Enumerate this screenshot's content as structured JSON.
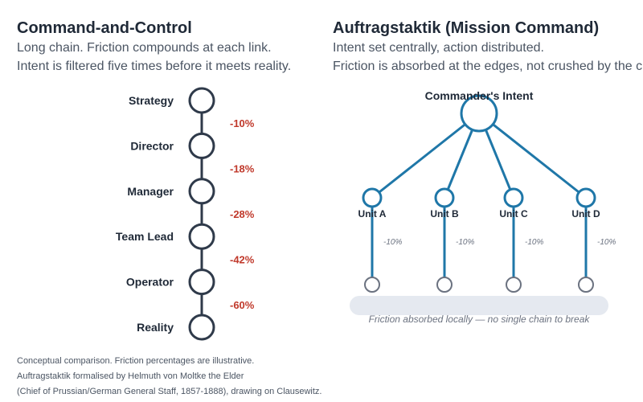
{
  "left": {
    "title": "Command-and-Control",
    "subtitle_1": "Long chain. Friction compounds at each link.",
    "subtitle_2": "Intent is filtered five times before it meets reality.",
    "chain": [
      "Strategy",
      "Director",
      "Manager",
      "Team Lead",
      "Operator",
      "Reality"
    ],
    "losses": [
      "-10%",
      "-18%",
      "-28%",
      "-42%",
      "-60%"
    ]
  },
  "right": {
    "title": "Auftragstaktik (Mission Command)",
    "subtitle_1": "Intent set centrally, action distributed.",
    "subtitle_2": "Friction is absorbed at the edges, not crushed by the chain.",
    "root_label": "Commander's Intent",
    "units": [
      "Unit A",
      "Unit B",
      "Unit C",
      "Unit D"
    ],
    "unit_losses": [
      "-10%",
      "-10%",
      "-10%",
      "-10%"
    ],
    "band_label": "Friction absorbed locally — no single chain to break"
  },
  "footnotes": [
    "Conceptual comparison. Friction percentages are illustrative.",
    "Auftragstaktik formalised by Helmuth von Moltke the Elder",
    "(Chief of Prussian/German General Staff, 1857-1888), drawing on Clausewitz."
  ],
  "colors": {
    "chain": "#2f3a4a",
    "loss": "#c0392b",
    "mission": "#1f77a8",
    "leaf": "#6b7280",
    "band": "#e5e9f0"
  }
}
